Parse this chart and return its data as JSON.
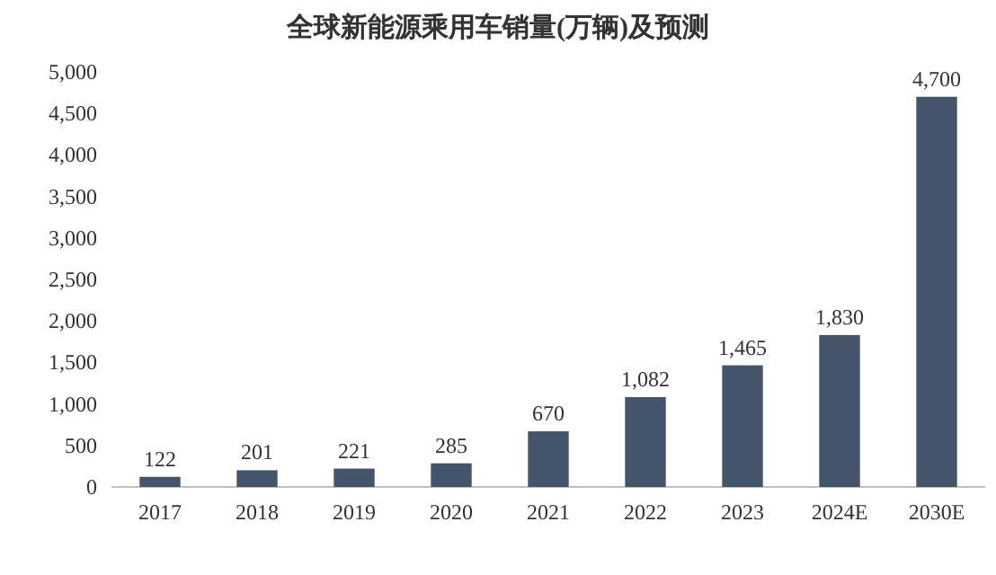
{
  "chart_data": {
    "type": "bar",
    "title": "全球新能源乘用车销量(万辆)及预测",
    "categories": [
      "2017",
      "2018",
      "2019",
      "2020",
      "2021",
      "2022",
      "2023",
      "2024E",
      "2030E"
    ],
    "values": [
      122,
      201,
      221,
      285,
      670,
      1082,
      1465,
      1830,
      4700
    ],
    "color": "#44546a",
    "ylim": [
      0,
      5000
    ],
    "yticks": [
      {
        "value": 0,
        "label": "0"
      },
      {
        "value": 500,
        "label": "500"
      },
      {
        "value": 1000,
        "label": "1,000"
      },
      {
        "value": 1500,
        "label": "1,500"
      },
      {
        "value": 2000,
        "label": "2,000"
      },
      {
        "value": 2500,
        "label": "2,500"
      },
      {
        "value": 3000,
        "label": "3,000"
      },
      {
        "value": 3500,
        "label": "3,500"
      },
      {
        "value": 4000,
        "label": "4,000"
      },
      {
        "value": 4500,
        "label": "4,500"
      },
      {
        "value": 5000,
        "label": "5,000"
      }
    ],
    "value_labels": [
      "122",
      "201",
      "221",
      "285",
      "670",
      "1,082",
      "1,465",
      "1,830",
      "4,700"
    ]
  }
}
